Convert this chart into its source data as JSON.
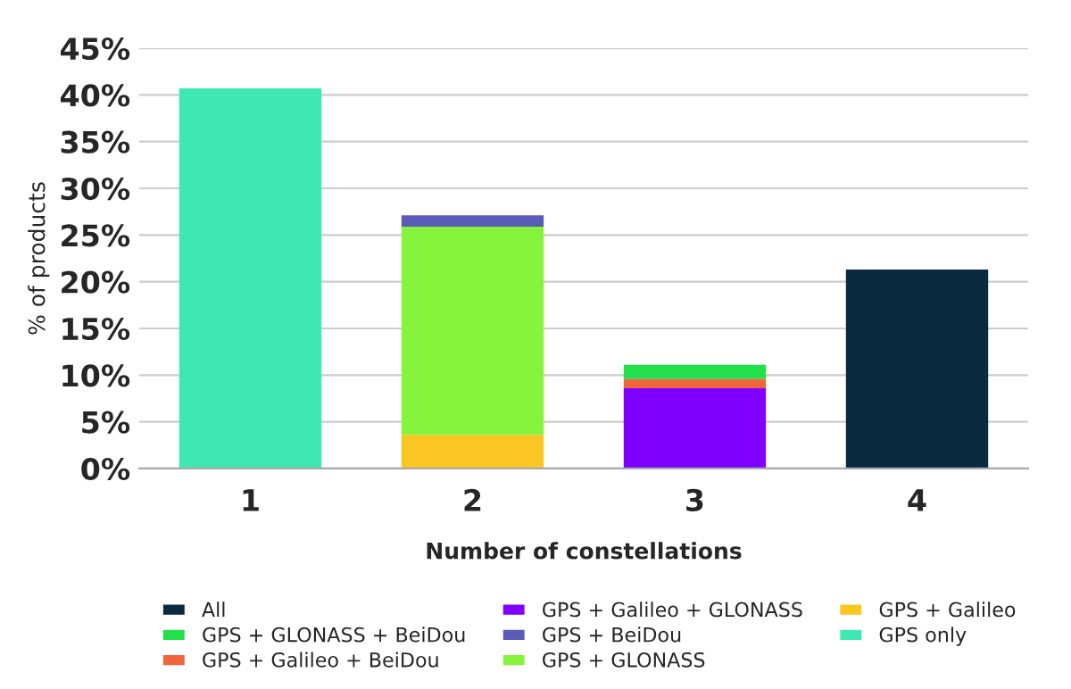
{
  "chart_data": {
    "type": "bar",
    "stacked": true,
    "xlabel": "Number of constellations",
    "ylabel": "% of products",
    "categories": [
      "1",
      "2",
      "3",
      "4"
    ],
    "series": [
      {
        "name": "GPS only",
        "color": "#3ee8b0",
        "values": [
          40.7,
          null,
          null,
          null
        ]
      },
      {
        "name": "GPS + Galileo",
        "color": "#f9c623",
        "values": [
          null,
          3.6,
          null,
          null
        ]
      },
      {
        "name": "GPS + GLONASS",
        "color": "#86f43c",
        "values": [
          null,
          22.3,
          null,
          null
        ]
      },
      {
        "name": "GPS + BeiDou",
        "color": "#5a5ab8",
        "values": [
          null,
          1.2,
          null,
          null
        ]
      },
      {
        "name": "GPS + Galileo + GLONASS",
        "color": "#8000ff",
        "values": [
          null,
          null,
          8.6,
          null
        ]
      },
      {
        "name": "GPS + Galileo + BeiDou",
        "color": "#f0663a",
        "values": [
          null,
          null,
          1.0,
          null
        ]
      },
      {
        "name": "GPS + GLONASS + BeiDou",
        "color": "#22e04a",
        "values": [
          null,
          null,
          1.5,
          null
        ]
      },
      {
        "name": "All",
        "color": "#0a2a3f",
        "values": [
          null,
          null,
          null,
          21.3
        ]
      }
    ],
    "ylim": [
      0,
      45
    ],
    "yticks": [
      {
        "value": 0,
        "label": "0%"
      },
      {
        "value": 5,
        "label": "5%"
      },
      {
        "value": 10,
        "label": "10%"
      },
      {
        "value": 15,
        "label": "15%"
      },
      {
        "value": 20,
        "label": "20%"
      },
      {
        "value": 25,
        "label": "25%"
      },
      {
        "value": 30,
        "label": "30%"
      },
      {
        "value": 35,
        "label": "35%"
      },
      {
        "value": 40,
        "label": "40%"
      },
      {
        "value": 45,
        "label": "45%"
      }
    ],
    "grid": "y",
    "legend": "bottom"
  }
}
